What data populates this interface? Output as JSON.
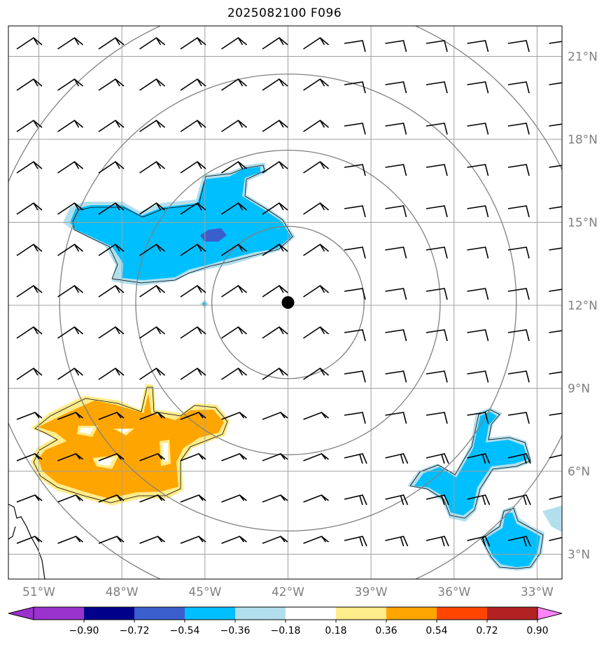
{
  "title": "2025082100 F096",
  "map": {
    "lon_labels": [
      "51°W",
      "48°W",
      "45°W",
      "42°W",
      "39°W",
      "36°W",
      "33°W"
    ],
    "lon_values": [
      -51,
      -48,
      -45,
      -42,
      -39,
      -36,
      -33
    ],
    "lat_labels": [
      "21°N",
      "18°N",
      "15°N",
      "12°N",
      "9°N",
      "6°N",
      "3°N"
    ],
    "lat_values": [
      21,
      18,
      15,
      12,
      9,
      6,
      3
    ],
    "extent": {
      "lon_min": -52.1,
      "lon_max": -32.1,
      "lat_min": 2.1,
      "lat_max": 22.1
    },
    "center": {
      "lon": -42.0,
      "lat": 12.1
    },
    "range_ring_radii_deg": [
      2.75,
      5.5,
      8.25,
      11.0
    ],
    "grid_color": "#a0a0a0",
    "ring_color": "#808080",
    "center_marker_color": "#000000"
  },
  "colorbar": {
    "labels": [
      "−0.90",
      "−0.72",
      "−0.54",
      "−0.36",
      "−0.18",
      "0.18",
      "0.36",
      "0.54",
      "0.72",
      "0.90"
    ],
    "level_values": [
      -0.9,
      -0.72,
      -0.54,
      -0.36,
      -0.18,
      0.18,
      0.36,
      0.54,
      0.72,
      0.9
    ],
    "colors": [
      "#9a32cd",
      "#00008b",
      "#3a5fcd",
      "#00bfff",
      "#b2dfee",
      "#ffffff",
      "#ffec8b",
      "#ffa500",
      "#ff4500",
      "#b22222",
      "#ff83fa"
    ]
  },
  "fields": {
    "positive_regions": [
      {
        "level": 0.18,
        "color": "#ffec8b"
      },
      {
        "level": 0.36,
        "color": "#ffa500"
      }
    ],
    "negative_regions": [
      {
        "level": -0.18,
        "color": "#b2dfee"
      },
      {
        "level": -0.36,
        "color": "#00bfff"
      },
      {
        "level": -0.54,
        "color": "#3a5fcd"
      }
    ]
  }
}
